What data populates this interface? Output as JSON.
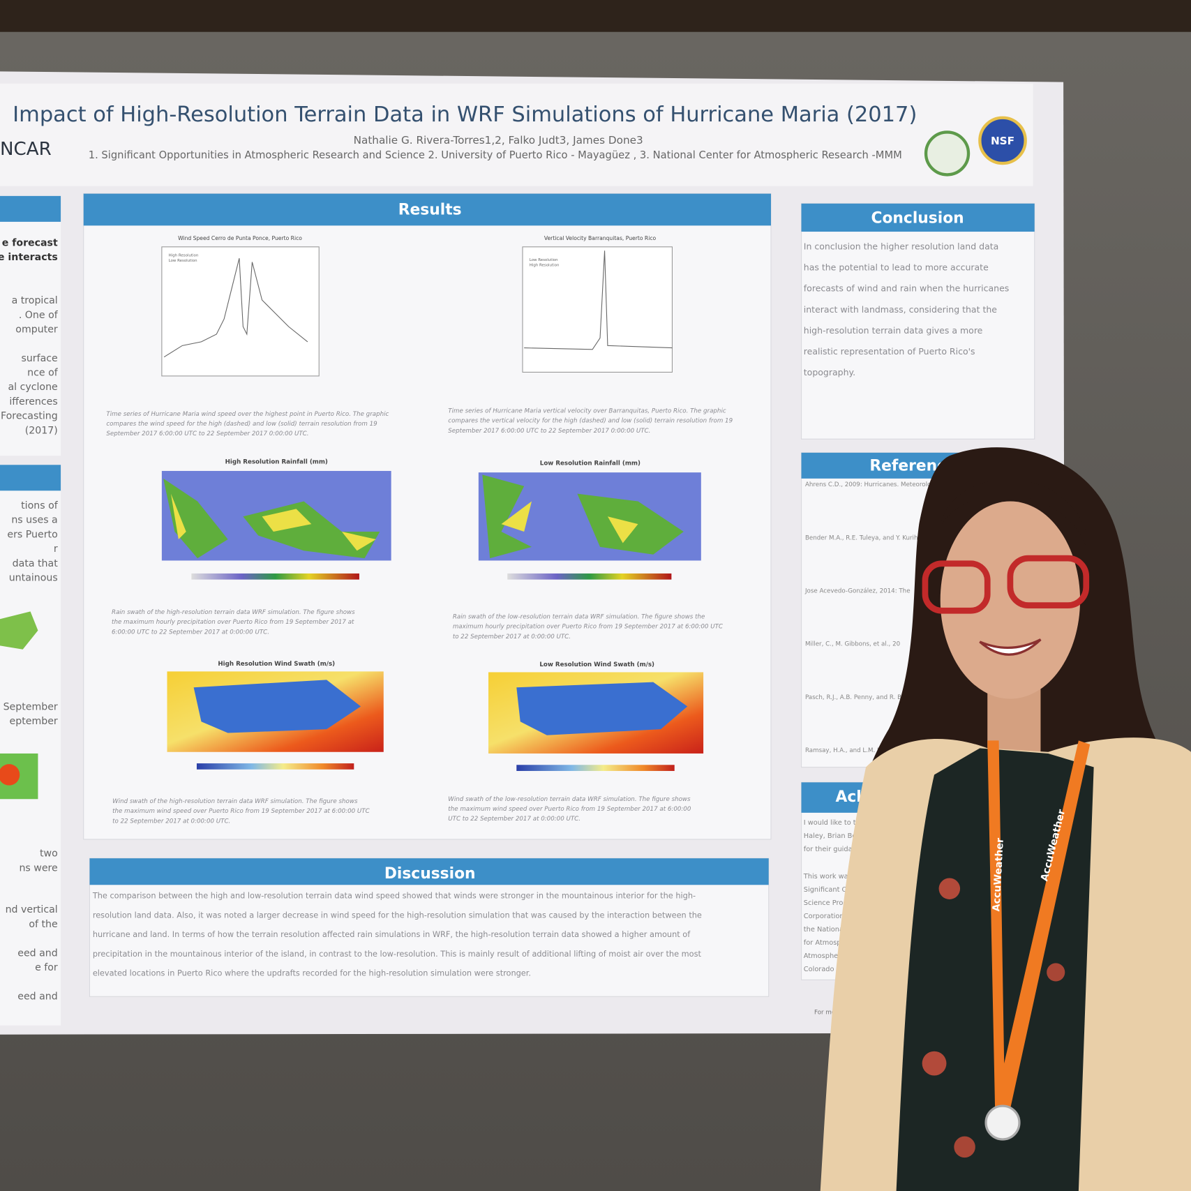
{
  "poster": {
    "title": "Impact of High-Resolution Terrain Data in WRF Simulations of Hurricane Maria (2017)",
    "authors": "Nathalie G. Rivera-Torres1,2, Falko Judt3, James Done3",
    "affiliations": "1. Significant Opportunities in Atmospheric Research and Science 2. University of Puerto Rico - Mayagüez , 3. National Center for Atmospheric Research -MMM",
    "logo_left": "NCAR",
    "logo_right": "NSF",
    "left_column": {
      "top_lines": [
        "e forecast",
        "he interacts",
        "a tropical",
        ". One of",
        "omputer",
        "surface",
        "nce of",
        "al cyclone",
        "ifferences",
        "Forecasting",
        "(2017)"
      ],
      "bottom_lines": [
        "tions of",
        "ns uses a",
        "ers Puerto",
        "r",
        "data that",
        "untainous",
        "September",
        "eptember",
        "two",
        "ns were",
        "nd vertical",
        "of the",
        "eed and",
        "e for",
        "eed and"
      ]
    },
    "results": {
      "heading": "Results",
      "figures": [
        {
          "title": "Wind Speed Cerro de Punta Ponce, Puerto Rico",
          "legend": [
            "High Resolution",
            "Low Resolution"
          ],
          "caption": [
            "Time series of Hurricane Maria wind speed over the highest point in Puerto Rico. The graphic",
            "compares the wind speed for the high (dashed) and low (solid) terrain resolution from 19",
            "September 2017 6:00:00 UTC to 22 September 2017 0:00:00 UTC."
          ]
        },
        {
          "title": "Vertical Velocity Barranquitas, Puerto Rico",
          "legend": [
            "Low Resolution",
            "High Resolution"
          ],
          "caption": [
            "Time series of Hurricane Maria vertical velocity over Barranquitas, Puerto Rico. The graphic",
            "compares the vertical velocity for the high (dashed) and low (solid) terrain resolution from 19",
            "September 2017 6:00:00 UTC to 22 September 2017 0:00:00 UTC."
          ]
        },
        {
          "title": "High Resolution Rainfall (mm)",
          "caption": [
            "Rain swath of the high-resolution terrain data WRF simulation. The figure shows",
            "the maximum hourly precipitation over Puerto Rico from 19 September 2017 at",
            "6:00:00 UTC to 22 September 2017 at 0:00:00 UTC."
          ]
        },
        {
          "title": "Low Resolution Rainfall (mm)",
          "caption": [
            "Rain swath of the low-resolution terrain data WRF simulation. The figure shows the",
            "maximum hourly precipitation over Puerto Rico from 19 September 2017 at 6:00:00 UTC",
            "to 22 September 2017 at 0:00:00 UTC."
          ]
        },
        {
          "title": "High Resolution Wind Swath (m/s)",
          "caption": [
            "Wind swath of the high-resolution terrain data WRF simulation. The figure shows",
            "the maximum wind speed over Puerto Rico from 19 September 2017 at 6:00:00 UTC",
            "to 22 September 2017 at 0:00:00 UTC."
          ]
        },
        {
          "title": "Low Resolution Wind Swath (m/s)",
          "caption": [
            "Wind swath of the low-resolution terrain data WRF simulation. The figure shows",
            "the maximum wind speed over Puerto Rico from 19 September 2017 at 6:00:00",
            "UTC to 22 September 2017 at 0:00:00 UTC."
          ]
        }
      ]
    },
    "conclusion": {
      "heading": "Conclusion",
      "lines": [
        "In conclusion the higher resolution land data",
        "has the potential to lead to more accurate",
        "forecasts of wind and rain when the hurricanes",
        "interact with landmass, considering that the",
        "high-resolution terrain data gives a more",
        "realistic representation of Puerto Rico's",
        "topography."
      ]
    },
    "references": {
      "heading": "References",
      "lines": [
        "Ahrens C.D., 2009: Hurricanes. Meteorolo",
        "Bender M.A., R.E. Tuleya, and Y. Kurih",
        "Jose Acevedo-González, 2014: The",
        "Miller, C., M. Gibbons, et al., 20",
        "Pasch, R.J., A.B. Penny, and R. Ber",
        "Ramsay, H.A., and L.M. Les"
      ]
    },
    "acknowledgements": {
      "heading": "Ack",
      "lines": [
        "I would like to tha",
        "Haley, Brian Bevi",
        "for their guidanc",
        "This work was p",
        "Significant Oppo",
        "Science Prog",
        "Corporation",
        "the National",
        "for Atmosph",
        "Atmospheric",
        "Colorado at"
      ]
    },
    "discussion": {
      "heading": "Discussion",
      "lines": [
        "The comparison between the high and low-resolution terrain data wind speed showed that winds were stronger in the mountainous interior for the high-",
        "resolution land data. Also, it was noted a larger decrease in wind speed for the high-resolution simulation that was caused by the interaction between the",
        "hurricane and land.  In terms of how the terrain resolution affected rain simulations in WRF, the high-resolution terrain data showed a higher amount of",
        "precipitation in the mountainous interior of the island, in contrast to the low-resolution. This is mainly result of additional lifting of moist air over the most",
        "elevated locations in Puerto Rico where the updrafts recorded for the high-resolution simulation were stronger."
      ]
    },
    "footer": "For more",
    "lanyard": "AccuWeather"
  }
}
